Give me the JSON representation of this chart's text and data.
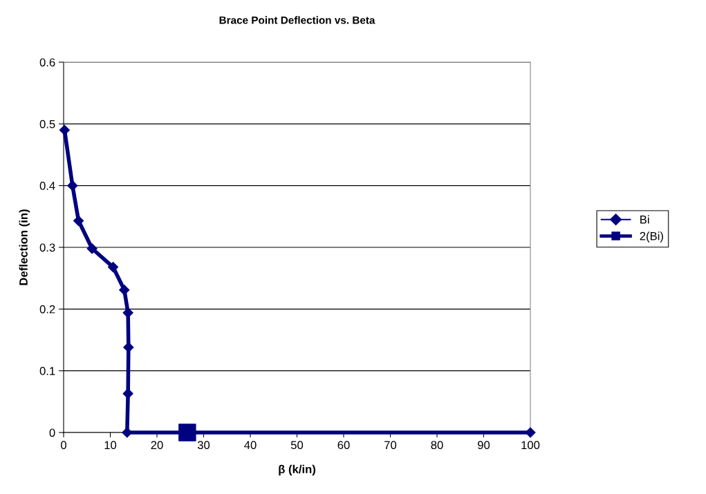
{
  "chart_data": {
    "type": "line",
    "title": "Brace Point Deflection vs. Beta",
    "xlabel": "β (k/in)",
    "ylabel": "Deflection (in)",
    "series": [
      {
        "name": "Bi",
        "color": "#000080",
        "marker": "diamond",
        "x": [
          0.2,
          1.9,
          3.2,
          6.1,
          10.6,
          13.0,
          13.8,
          13.9,
          13.8,
          13.6,
          100
        ],
        "values": [
          0.49,
          0.4,
          0.343,
          0.298,
          0.268,
          0.231,
          0.194,
          0.138,
          0.063,
          0,
          0
        ]
      },
      {
        "name": "2(Bi)",
        "type": "scatter",
        "color": "#000080",
        "marker": "square",
        "x": [
          26.5
        ],
        "values": [
          0
        ]
      }
    ],
    "xlim": [
      0,
      100
    ],
    "xticks": [
      0,
      10,
      20,
      30,
      40,
      50,
      60,
      70,
      80,
      90,
      100
    ],
    "ylim": [
      0,
      0.6
    ],
    "yticks": [
      0,
      0.1,
      0.2,
      0.3,
      0.4,
      0.5,
      0.6
    ],
    "grid": "y",
    "legend": "right"
  }
}
